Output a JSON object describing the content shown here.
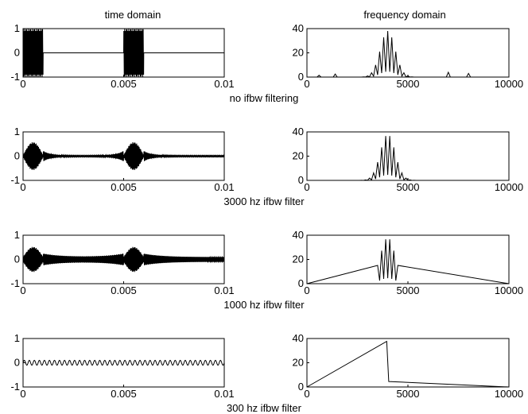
{
  "figure": {
    "col_titles": [
      "time domain",
      "frequency domain"
    ]
  },
  "chart_data": [
    {
      "type": "line",
      "panel": "time-no-filter",
      "row_caption": "no ifbw filtering",
      "x_ticks": [
        "0",
        "0.005",
        "0.01"
      ],
      "y_ticks": [
        "1",
        "0",
        "-1"
      ],
      "xlim": [
        0,
        0.01
      ],
      "ylim": [
        -1,
        1
      ],
      "signal": {
        "kind": "time",
        "carrier_cycles": 250,
        "decay": 0,
        "bursts": [
          [
            0,
            0.001
          ],
          [
            0.005,
            0.006
          ]
        ],
        "burst_amp": 1.0,
        "noise_amp": 0,
        "noise_cycles": 0,
        "taper": false
      }
    },
    {
      "type": "line",
      "panel": "freq-no-filter",
      "x_ticks": [
        "0",
        "5000",
        "10000"
      ],
      "y_ticks": [
        "40",
        "20",
        "0"
      ],
      "xlim": [
        0,
        10000
      ],
      "ylim": [
        0,
        40
      ],
      "signal": {
        "kind": "freq",
        "center": 4000,
        "peak": 38,
        "envelope_width": 520,
        "line_spacing": 200,
        "band": [
          0,
          10000
        ],
        "side_peaks": [
          [
            2500,
            7
          ],
          [
            5500,
            9
          ],
          [
            6300,
            5
          ],
          [
            7000,
            4
          ],
          [
            8000,
            3
          ],
          [
            1400,
            2.5
          ],
          [
            9300,
            2
          ],
          [
            600,
            1.5
          ]
        ]
      }
    },
    {
      "type": "line",
      "panel": "time-3000hz",
      "row_caption": "3000 hz ifbw filter",
      "x_ticks": [
        "0",
        "0.005",
        "0.01"
      ],
      "y_ticks": [
        "1",
        "0",
        "-1"
      ],
      "xlim": [
        0,
        0.01
      ],
      "ylim": [
        -1,
        1
      ],
      "signal": {
        "kind": "time",
        "carrier_cycles": 250,
        "decay": 0.00035,
        "bursts": [
          [
            0,
            0.001
          ],
          [
            0.005,
            0.006
          ]
        ],
        "burst_amp": 0.55,
        "noise_amp": 0.03,
        "noise_cycles": 250,
        "taper": true
      }
    },
    {
      "type": "line",
      "panel": "freq-3000hz",
      "x_ticks": [
        "0",
        "5000",
        "10000"
      ],
      "y_ticks": [
        "40",
        "20",
        "0"
      ],
      "xlim": [
        0,
        10000
      ],
      "ylim": [
        0,
        40
      ],
      "signal": {
        "kind": "freq",
        "center": 4000,
        "peak": 38,
        "envelope_width": 520,
        "line_spacing": 200,
        "band": [
          2500,
          5500
        ],
        "side_peaks": [
          [
            2600,
            6
          ],
          [
            5400,
            9
          ]
        ]
      }
    },
    {
      "type": "line",
      "panel": "time-1000hz",
      "row_caption": "1000 hz ifbw filter",
      "x_ticks": [
        "0",
        "0.005",
        "0.01"
      ],
      "y_ticks": [
        "1",
        "0",
        "-1"
      ],
      "xlim": [
        0,
        0.01
      ],
      "ylim": [
        -1,
        1
      ],
      "signal": {
        "kind": "time",
        "carrier_cycles": 250,
        "decay": 0.0009,
        "bursts": [
          [
            0,
            0.001
          ],
          [
            0.005,
            0.006
          ]
        ],
        "burst_amp": 0.42,
        "noise_amp": 0.1,
        "noise_cycles": 250,
        "taper": true
      }
    },
    {
      "type": "line",
      "panel": "freq-1000hz",
      "x_ticks": [
        "0",
        "5000",
        "10000"
      ],
      "y_ticks": [
        "40",
        "20",
        "0"
      ],
      "xlim": [
        0,
        10000
      ],
      "ylim": [
        0,
        40
      ],
      "signal": {
        "kind": "freq",
        "center": 4000,
        "peak": 38,
        "envelope_width": 520,
        "line_spacing": 200,
        "band": [
          3500,
          4500
        ],
        "side_peaks": []
      }
    },
    {
      "type": "line",
      "panel": "time-300hz",
      "row_caption": "300 hz ifbw filter",
      "x_ticks": [
        "0",
        "0.005",
        "0.01"
      ],
      "y_ticks": [
        "1",
        "0",
        "-1"
      ],
      "xlim": [
        0,
        0.01
      ],
      "ylim": [
        -1,
        1
      ],
      "signal": {
        "kind": "time",
        "carrier_cycles": 40,
        "decay": 0,
        "bursts": [],
        "burst_amp": 0,
        "noise_amp": 0.1,
        "noise_cycles": 40,
        "taper": false
      }
    },
    {
      "type": "line",
      "panel": "freq-300hz",
      "x_ticks": [
        "0",
        "5000",
        "10000"
      ],
      "y_ticks": [
        "40",
        "20",
        "0"
      ],
      "xlim": [
        0,
        10000
      ],
      "ylim": [
        0,
        40
      ],
      "signal": {
        "kind": "freq",
        "center": 4000,
        "peak": 38,
        "envelope_width": 520,
        "line_spacing": 200,
        "band": [
          3950,
          4050
        ],
        "side_peaks": []
      }
    }
  ]
}
